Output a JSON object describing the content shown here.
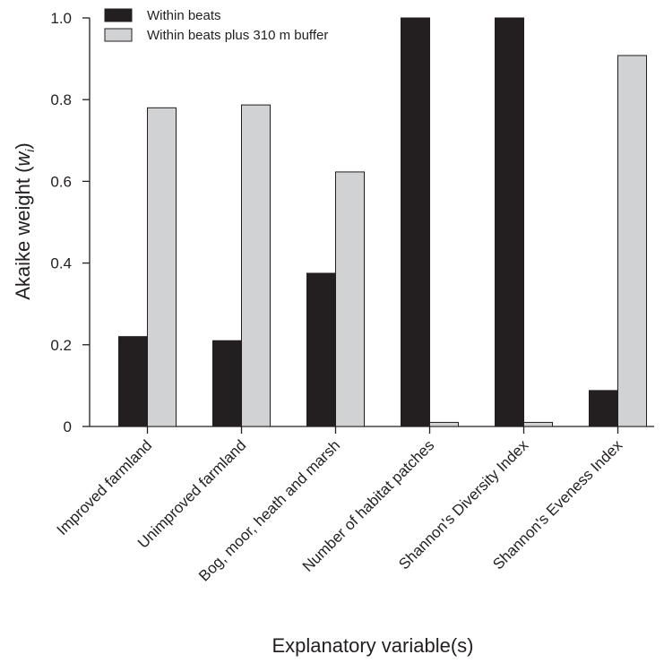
{
  "chart_data": {
    "type": "bar",
    "title": "",
    "xlabel": "Explanatory variable(s)",
    "ylabel": {
      "main": "Akaike weight (",
      "italic": "w",
      "sub": "i",
      "close": ")"
    },
    "ylim": [
      0,
      1.0
    ],
    "yticks": [
      "0",
      "0.2",
      "0.4",
      "0.6",
      "0.8",
      "1.0"
    ],
    "ytick_values": [
      0,
      0.2,
      0.4,
      0.6,
      0.8,
      1.0
    ],
    "grid": false,
    "legend_position": "top-left",
    "categories": [
      "Improved farmland",
      "Unimproved farmland",
      "Bog, moor, heath and marsh",
      "Number of habitat patches",
      "Shannon's Diversity Index",
      "Shannon's Eveness Index"
    ],
    "series": [
      {
        "name": "Within beats",
        "color": "#231f20",
        "values": [
          0.22,
          0.21,
          0.375,
          1.0,
          1.0,
          0.088
        ]
      },
      {
        "name": "Within beats plus 310 m buffer",
        "color": "#d1d2d4",
        "values": [
          0.78,
          0.787,
          0.623,
          0.01,
          0.01,
          0.908
        ]
      }
    ]
  }
}
